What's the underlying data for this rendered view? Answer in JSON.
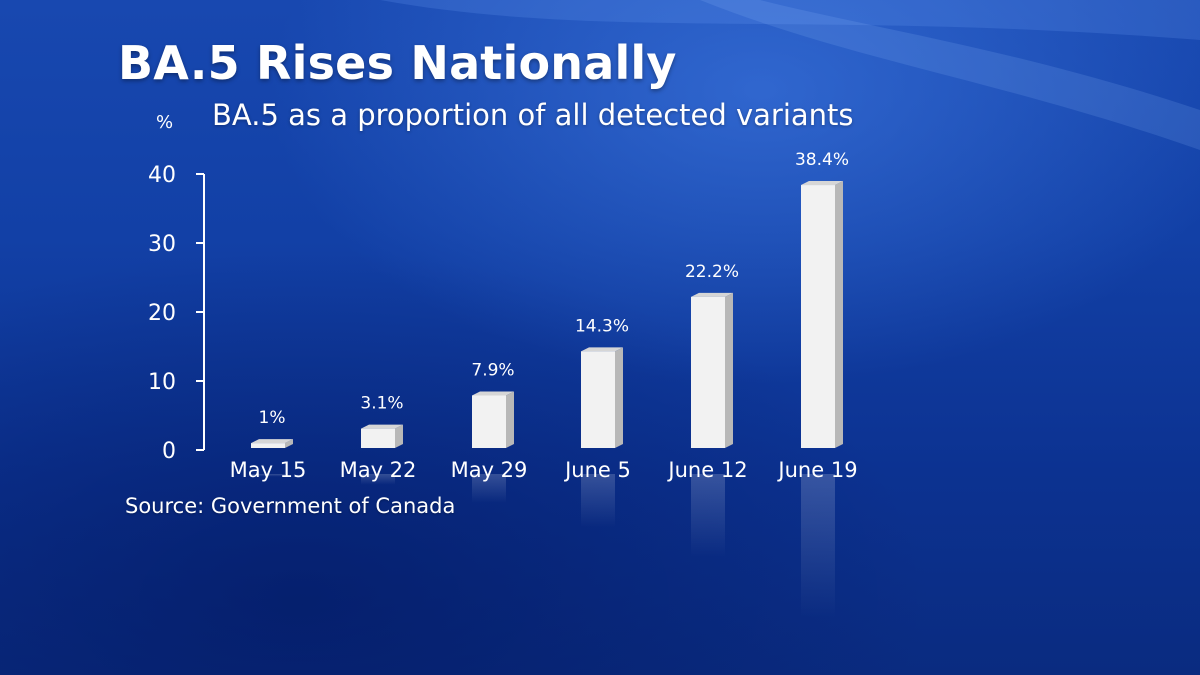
{
  "header": {
    "title": "BA.5 Rises Nationally",
    "subtitle": "BA.5 as a proportion of all detected variants",
    "unit": "%"
  },
  "footer": {
    "source": "Source: Government of Canada"
  },
  "colors": {
    "background": "#1240a6",
    "bar_front": "#f2f2f2",
    "bar_side": "#b8b8b8",
    "bar_top": "#d6d6d6",
    "text": "#ffffff"
  },
  "chart_data": {
    "type": "bar",
    "title": "BA.5 Rises Nationally",
    "subtitle": "BA.5 as a proportion of all detected variants",
    "ylabel": "%",
    "xlabel": "",
    "categories": [
      "May 15",
      "May 22",
      "May 29",
      "June 5",
      "June 12",
      "June 19"
    ],
    "values": [
      1,
      3.1,
      7.9,
      14.3,
      22.2,
      38.4
    ],
    "data_labels": [
      "1%",
      "3.1%",
      "7.9%",
      "14.3%",
      "22.2%",
      "38.4%"
    ],
    "ylim": [
      0,
      40
    ],
    "yticks": [
      0,
      10,
      20,
      30,
      40
    ],
    "grid": false,
    "legend": "none"
  }
}
